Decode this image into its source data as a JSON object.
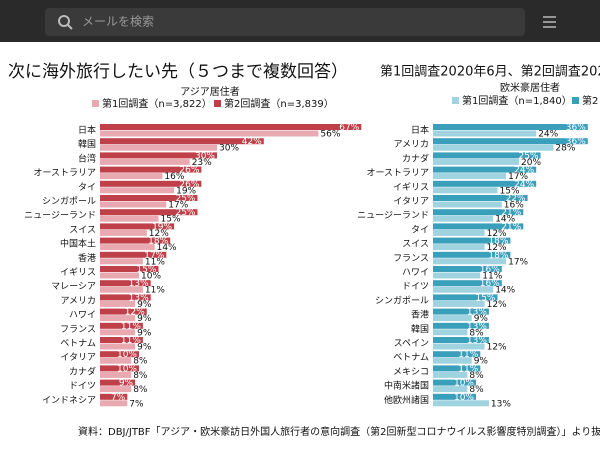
{
  "search_placeholder": "メールを検索",
  "title": "次に海外旅行したい先（５つまで複数回答）",
  "subtitle": "第1回調査2020年6月、第2回調査202",
  "source": "資料：DBJ/JTBF「アジア・欧米豪訪日外国人旅行者の意向調査（第2回新型コロナウイルス影響度特別調査）」より抜",
  "chart_data": [
    {
      "type": "bar",
      "title": "アジア居住者",
      "categories": [
        "日本",
        "韓国",
        "台湾",
        "オーストラリア",
        "タイ",
        "シンガポール",
        "ニュージーランド",
        "スイス",
        "中国本土",
        "香港",
        "イギリス",
        "マレーシア",
        "アメリカ",
        "ハワイ",
        "フランス",
        "ベトナム",
        "イタリア",
        "カナダ",
        "ドイツ",
        "インドネシア"
      ],
      "series": [
        {
          "name": "第1回調査（n=3,822）",
          "color": "#e8aab0",
          "values": [
            56,
            30,
            23,
            16,
            19,
            17,
            15,
            12,
            14,
            11,
            10,
            11,
            9,
            9,
            9,
            9,
            8,
            8,
            8,
            7
          ],
          "value_labels": [
            "56%",
            "30%",
            "23%",
            "16%",
            "19%",
            "17%",
            "15%",
            "12%",
            "14%",
            "11%",
            "10%",
            "11%",
            "9%",
            "9%",
            "9%",
            "9%",
            "8%",
            "8%",
            "8%",
            "7%"
          ]
        },
        {
          "name": "第2回調査（n=3,839）",
          "color": "#c0404a",
          "values": [
            67,
            42,
            30,
            26,
            26,
            25,
            25,
            19,
            18,
            17,
            15,
            13,
            13,
            12,
            11,
            11,
            10,
            10,
            9,
            7
          ],
          "value_labels": [
            "67%",
            "42%",
            "30%",
            "26%",
            "26%",
            "25%",
            "25%",
            "19%",
            "18%",
            "17%",
            "15%",
            "13%",
            "13%",
            "12%",
            "11%",
            "11%",
            "10%",
            "10%",
            "9%",
            "7%"
          ]
        }
      ]
    },
    {
      "type": "bar",
      "title": "欧米豪居住者",
      "categories": [
        "日本",
        "アメリカ",
        "カナダ",
        "オーストラリア",
        "イギリス",
        "イタリア",
        "ニュージーランド",
        "タイ",
        "スイス",
        "フランス",
        "ハワイ",
        "ドイツ",
        "シンガポール",
        "香港",
        "韓国",
        "スペイン",
        "ベトナム",
        "メキシコ",
        "中南米諸国",
        "他欧州諸国"
      ],
      "series": [
        {
          "name": "第1回調査（n=1,840）",
          "color": "#9fd3df",
          "values": [
            24,
            28,
            20,
            17,
            15,
            16,
            14,
            12,
            12,
            17,
            11,
            14,
            12,
            9,
            8,
            12,
            9,
            8,
            8,
            13
          ],
          "value_labels": [
            "24%",
            "28%",
            "20%",
            "17%",
            "15%",
            "16%",
            "14%",
            "12%",
            "12%",
            "17%",
            "11%",
            "14%",
            "12%",
            "9%",
            "8%",
            "12%",
            "9%",
            "8%",
            "8%",
            "13%"
          ]
        },
        {
          "name": "第2",
          "color": "#3a9fba",
          "values": [
            36,
            36,
            25,
            24,
            24,
            22,
            21,
            21,
            18,
            18,
            16,
            16,
            15,
            13,
            13,
            13,
            11,
            11,
            10,
            10
          ],
          "value_labels": [
            "36%",
            "36%",
            "25%",
            "24%",
            "24%",
            "22%",
            "21%",
            "21%",
            "18%",
            "18%",
            "16%",
            "16%",
            "15%",
            "13%",
            "13%",
            "13%",
            "11%",
            "11%",
            "10%",
            "10%"
          ]
        }
      ]
    }
  ]
}
